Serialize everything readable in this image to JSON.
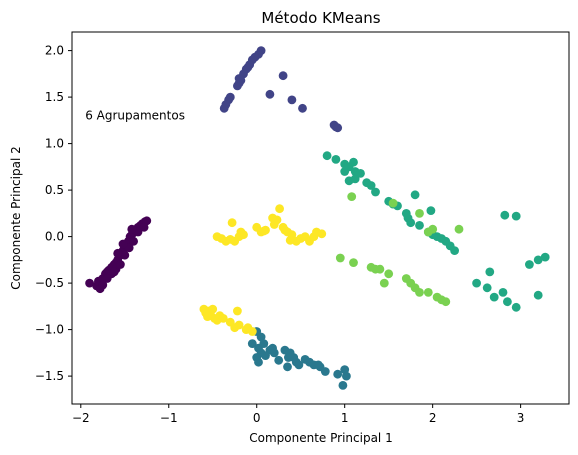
{
  "chart_data": {
    "type": "scatter",
    "title": "Método KMeans",
    "xlabel": "Componente Principal 1",
    "ylabel": "Componente Principal 2",
    "xlim": [
      -2.1,
      3.55
    ],
    "ylim": [
      -1.8,
      2.2
    ],
    "xticks": [
      -2,
      -1,
      0,
      1,
      2,
      3
    ],
    "yticks": [
      -1.5,
      -1.0,
      -0.5,
      0.0,
      0.5,
      1.0,
      1.5,
      2.0
    ],
    "ytick_labels": [
      "−1.5",
      "−1.0",
      "−0.5",
      "0.0",
      "0.5",
      "1.0",
      "1.5",
      "2.0"
    ],
    "xtick_labels": [
      "−2",
      "−1",
      "0",
      "1",
      "2",
      "3"
    ],
    "grid": false,
    "annotation": {
      "text": "6 Agrupamentos",
      "x": -1.95,
      "y": 1.3
    },
    "clusters": [
      {
        "color": "#440154",
        "points": [
          [
            -1.9,
            -0.5
          ],
          [
            -1.82,
            -0.53
          ],
          [
            -1.78,
            -0.56
          ],
          [
            -1.8,
            -0.48
          ],
          [
            -1.75,
            -0.45
          ],
          [
            -1.72,
            -0.4
          ],
          [
            -1.7,
            -0.38
          ],
          [
            -1.68,
            -0.36
          ],
          [
            -1.65,
            -0.33
          ],
          [
            -1.62,
            -0.3
          ],
          [
            -1.6,
            -0.28
          ],
          [
            -1.58,
            -0.25
          ],
          [
            -1.55,
            -0.2
          ],
          [
            -1.52,
            -0.15
          ],
          [
            -1.5,
            -0.12
          ],
          [
            -1.48,
            -0.1
          ],
          [
            -1.46,
            -0.05
          ],
          [
            -1.44,
            0.0
          ],
          [
            -1.42,
            0.02
          ],
          [
            -1.4,
            0.05
          ],
          [
            -1.38,
            0.07
          ],
          [
            -1.35,
            0.1
          ],
          [
            -1.32,
            0.12
          ],
          [
            -1.3,
            0.14
          ],
          [
            -1.27,
            0.16
          ],
          [
            -1.25,
            0.17
          ],
          [
            -1.6,
            -0.35
          ],
          [
            -1.55,
            -0.3
          ],
          [
            -1.5,
            -0.2
          ],
          [
            -1.45,
            -0.12
          ],
          [
            -1.4,
            -0.05
          ],
          [
            -1.35,
            0.05
          ],
          [
            -1.65,
            -0.4
          ],
          [
            -1.7,
            -0.45
          ],
          [
            -1.52,
            -0.08
          ],
          [
            -1.42,
            0.08
          ],
          [
            -1.28,
            0.1
          ],
          [
            -1.58,
            -0.18
          ],
          [
            -1.62,
            -0.38
          ],
          [
            -1.75,
            -0.52
          ]
        ]
      },
      {
        "color": "#414487",
        "points": [
          [
            0.05,
            2.0
          ],
          [
            0.02,
            1.96
          ],
          [
            -0.02,
            1.93
          ],
          [
            -0.05,
            1.9
          ],
          [
            -0.08,
            1.85
          ],
          [
            -0.12,
            1.8
          ],
          [
            -0.15,
            1.75
          ],
          [
            -0.18,
            1.68
          ],
          [
            -0.2,
            1.65
          ],
          [
            -0.22,
            1.62
          ],
          [
            -0.3,
            1.5
          ],
          [
            -0.32,
            1.47
          ],
          [
            -0.35,
            1.42
          ],
          [
            -0.37,
            1.38
          ],
          [
            0.3,
            1.73
          ],
          [
            0.15,
            1.53
          ],
          [
            0.4,
            1.47
          ],
          [
            0.52,
            1.38
          ],
          [
            0.88,
            1.2
          ],
          [
            0.9,
            1.18
          ],
          [
            0.92,
            1.17
          ],
          [
            -0.1,
            1.82
          ],
          [
            -0.2,
            1.7
          ]
        ]
      },
      {
        "color": "#2a788e",
        "points": [
          [
            0.0,
            -1.02
          ],
          [
            0.05,
            -1.08
          ],
          [
            -0.05,
            -1.15
          ],
          [
            0.02,
            -1.2
          ],
          [
            0.05,
            -1.25
          ],
          [
            0.15,
            -1.22
          ],
          [
            0.18,
            -1.2
          ],
          [
            0.2,
            -1.25
          ],
          [
            0.1,
            -1.28
          ],
          [
            0.0,
            -1.3
          ],
          [
            0.02,
            -1.35
          ],
          [
            0.32,
            -1.22
          ],
          [
            0.38,
            -1.25
          ],
          [
            0.36,
            -1.3
          ],
          [
            0.42,
            -1.3
          ],
          [
            0.45,
            -1.35
          ],
          [
            0.35,
            -1.4
          ],
          [
            0.55,
            -1.32
          ],
          [
            0.6,
            -1.35
          ],
          [
            0.65,
            -1.38
          ],
          [
            0.7,
            -1.38
          ],
          [
            0.72,
            -1.4
          ],
          [
            0.78,
            -1.45
          ],
          [
            0.92,
            -1.48
          ],
          [
            1.0,
            -1.43
          ],
          [
            1.02,
            -1.5
          ],
          [
            0.98,
            -1.6
          ],
          [
            0.25,
            -1.33
          ],
          [
            0.48,
            -1.38
          ],
          [
            0.08,
            -1.15
          ]
        ]
      },
      {
        "color": "#22a884",
        "points": [
          [
            0.8,
            0.87
          ],
          [
            0.9,
            0.83
          ],
          [
            1.0,
            0.78
          ],
          [
            1.05,
            0.75
          ],
          [
            1.1,
            0.8
          ],
          [
            1.12,
            0.7
          ],
          [
            1.18,
            0.68
          ],
          [
            1.0,
            0.7
          ],
          [
            1.05,
            0.6
          ],
          [
            1.25,
            0.58
          ],
          [
            1.3,
            0.55
          ],
          [
            1.35,
            0.48
          ],
          [
            1.5,
            0.38
          ],
          [
            1.55,
            0.35
          ],
          [
            1.6,
            0.33
          ],
          [
            1.7,
            0.25
          ],
          [
            1.72,
            0.2
          ],
          [
            1.75,
            0.15
          ],
          [
            1.8,
            0.45
          ],
          [
            1.85,
            0.12
          ],
          [
            1.95,
            0.05
          ],
          [
            2.0,
            0.02
          ],
          [
            2.05,
            0.0
          ],
          [
            2.1,
            -0.02
          ],
          [
            2.15,
            -0.05
          ],
          [
            2.2,
            -0.1
          ],
          [
            2.25,
            -0.15
          ],
          [
            1.98,
            0.28
          ],
          [
            2.65,
            -0.38
          ],
          [
            2.5,
            -0.5
          ],
          [
            2.62,
            -0.55
          ],
          [
            2.7,
            -0.65
          ],
          [
            2.8,
            -0.6
          ],
          [
            2.85,
            -0.7
          ],
          [
            2.95,
            -0.76
          ],
          [
            2.82,
            0.23
          ],
          [
            2.95,
            0.22
          ],
          [
            3.1,
            -0.3
          ],
          [
            3.2,
            -0.25
          ],
          [
            3.28,
            -0.22
          ],
          [
            3.2,
            -0.63
          ],
          [
            1.12,
            0.62
          ]
        ]
      },
      {
        "color": "#7ad151",
        "points": [
          [
            1.08,
            0.43
          ],
          [
            1.55,
            0.36
          ],
          [
            1.85,
            0.25
          ],
          [
            1.95,
            0.05
          ],
          [
            2.0,
            0.08
          ],
          [
            2.3,
            0.08
          ],
          [
            0.95,
            -0.23
          ],
          [
            1.1,
            -0.28
          ],
          [
            1.3,
            -0.33
          ],
          [
            1.35,
            -0.35
          ],
          [
            1.5,
            -0.4
          ],
          [
            1.45,
            -0.5
          ],
          [
            1.7,
            -0.45
          ],
          [
            1.75,
            -0.5
          ],
          [
            1.8,
            -0.55
          ],
          [
            1.85,
            -0.6
          ],
          [
            1.95,
            -0.6
          ],
          [
            2.05,
            -0.65
          ],
          [
            2.1,
            -0.68
          ],
          [
            2.15,
            -0.7
          ],
          [
            1.4,
            -0.35
          ]
        ]
      },
      {
        "color": "#fde725",
        "points": [
          [
            -0.6,
            -0.78
          ],
          [
            -0.58,
            -0.82
          ],
          [
            -0.55,
            -0.8
          ],
          [
            -0.52,
            -0.85
          ],
          [
            -0.5,
            -0.78
          ],
          [
            -0.48,
            -0.88
          ],
          [
            -0.45,
            -0.9
          ],
          [
            -0.42,
            -0.85
          ],
          [
            -0.38,
            -0.88
          ],
          [
            -0.3,
            -0.92
          ],
          [
            -0.25,
            -0.98
          ],
          [
            -0.2,
            -0.95
          ],
          [
            -0.12,
            -1.0
          ],
          [
            -0.1,
            -0.98
          ],
          [
            -0.05,
            -1.02
          ],
          [
            -0.22,
            -0.8
          ],
          [
            -0.45,
            0.0
          ],
          [
            -0.4,
            -0.02
          ],
          [
            -0.35,
            -0.05
          ],
          [
            -0.3,
            -0.03
          ],
          [
            -0.25,
            -0.05
          ],
          [
            -0.2,
            0.0
          ],
          [
            -0.18,
            0.05
          ],
          [
            -0.15,
            0.02
          ],
          [
            0.0,
            0.1
          ],
          [
            0.05,
            0.05
          ],
          [
            0.1,
            0.07
          ],
          [
            0.18,
            0.2
          ],
          [
            0.2,
            0.13
          ],
          [
            0.23,
            0.18
          ],
          [
            0.26,
            0.3
          ],
          [
            0.3,
            0.1
          ],
          [
            0.35,
            0.05
          ],
          [
            0.4,
            0.02
          ],
          [
            0.45,
            -0.05
          ],
          [
            0.5,
            -0.02
          ],
          [
            0.55,
            0.0
          ],
          [
            0.6,
            -0.05
          ],
          [
            0.65,
            0.0
          ],
          [
            0.68,
            0.05
          ],
          [
            0.74,
            0.03
          ],
          [
            -0.28,
            0.15
          ],
          [
            0.08,
            0.06
          ],
          [
            0.38,
            -0.04
          ],
          [
            -0.56,
            -0.86
          ],
          [
            0.32,
            0.07
          ]
        ]
      }
    ]
  }
}
